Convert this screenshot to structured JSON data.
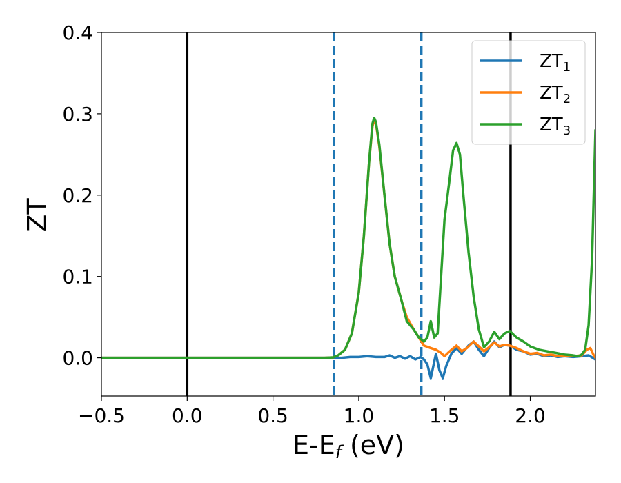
{
  "chart_data": {
    "type": "line",
    "xlabel": {
      "main": "E-E",
      "sub": "f",
      "unit": " (eV)"
    },
    "ylabel": "ZT",
    "xlim": [
      -0.5,
      2.38
    ],
    "ylim": [
      -0.047,
      0.4
    ],
    "x_ticks": [
      -0.5,
      0.0,
      0.5,
      1.0,
      1.5,
      2.0
    ],
    "x_tick_labels": [
      "−0.5",
      "0.0",
      "0.5",
      "1.0",
      "1.5",
      "2.0"
    ],
    "y_ticks": [
      0.0,
      0.1,
      0.2,
      0.3,
      0.4
    ],
    "y_tick_labels": [
      "0.0",
      "0.1",
      "0.2",
      "0.3",
      "0.4"
    ],
    "grid": false,
    "legend_position": "top-right",
    "vertical_lines": [
      {
        "x": 0.0,
        "style": "solid",
        "color": "#000000"
      },
      {
        "x": 1.885,
        "style": "solid",
        "color": "#000000"
      },
      {
        "x": 0.855,
        "style": "dashed",
        "color": "#1f77b4"
      },
      {
        "x": 1.365,
        "style": "dashed",
        "color": "#1f77b4"
      }
    ],
    "series": [
      {
        "name": "ZT",
        "name_sub": "1",
        "color": "#1f77b4",
        "points": [
          [
            -0.5,
            0
          ],
          [
            0.8,
            0
          ],
          [
            0.9,
            0
          ],
          [
            0.95,
            0.001
          ],
          [
            1.0,
            0.001
          ],
          [
            1.05,
            0.002
          ],
          [
            1.1,
            0.001
          ],
          [
            1.15,
            0.001
          ],
          [
            1.18,
            0.003
          ],
          [
            1.21,
            0
          ],
          [
            1.24,
            0.002
          ],
          [
            1.27,
            -0.001
          ],
          [
            1.3,
            0.002
          ],
          [
            1.33,
            -0.002
          ],
          [
            1.36,
            0.001
          ],
          [
            1.38,
            -0.002
          ],
          [
            1.4,
            -0.008
          ],
          [
            1.42,
            -0.025
          ],
          [
            1.44,
            -0.005
          ],
          [
            1.45,
            0.005
          ],
          [
            1.47,
            -0.015
          ],
          [
            1.49,
            -0.025
          ],
          [
            1.51,
            -0.01
          ],
          [
            1.54,
            0.005
          ],
          [
            1.57,
            0.012
          ],
          [
            1.6,
            0.005
          ],
          [
            1.64,
            0.015
          ],
          [
            1.67,
            0.02
          ],
          [
            1.7,
            0.01
          ],
          [
            1.73,
            0.002
          ],
          [
            1.76,
            0.012
          ],
          [
            1.79,
            0.02
          ],
          [
            1.82,
            0.013
          ],
          [
            1.85,
            0.016
          ],
          [
            1.88,
            0.015
          ],
          [
            1.92,
            0.01
          ],
          [
            1.96,
            0.008
          ],
          [
            2.0,
            0.004
          ],
          [
            2.04,
            0.005
          ],
          [
            2.08,
            0.002
          ],
          [
            2.12,
            0.003
          ],
          [
            2.16,
            0.001
          ],
          [
            2.2,
            0.002
          ],
          [
            2.25,
            0.001
          ],
          [
            2.3,
            0.002
          ],
          [
            2.34,
            0.003
          ],
          [
            2.38,
            -0.002
          ]
        ]
      },
      {
        "name": "ZT",
        "name_sub": "2",
        "color": "#ff7f0e",
        "points": [
          [
            -0.5,
            0
          ],
          [
            0.8,
            0
          ],
          [
            0.85,
            0.0005
          ],
          [
            0.88,
            0.003
          ],
          [
            0.92,
            0.01
          ],
          [
            0.96,
            0.03
          ],
          [
            1.0,
            0.08
          ],
          [
            1.03,
            0.15
          ],
          [
            1.06,
            0.24
          ],
          [
            1.08,
            0.285
          ],
          [
            1.09,
            0.292
          ],
          [
            1.1,
            0.288
          ],
          [
            1.12,
            0.26
          ],
          [
            1.15,
            0.2
          ],
          [
            1.18,
            0.14
          ],
          [
            1.21,
            0.1
          ],
          [
            1.25,
            0.07
          ],
          [
            1.28,
            0.05
          ],
          [
            1.32,
            0.035
          ],
          [
            1.35,
            0.025
          ],
          [
            1.38,
            0.015
          ],
          [
            1.42,
            0.012
          ],
          [
            1.45,
            0.01
          ],
          [
            1.48,
            0.006
          ],
          [
            1.5,
            0.002
          ],
          [
            1.53,
            0.008
          ],
          [
            1.57,
            0.015
          ],
          [
            1.6,
            0.008
          ],
          [
            1.63,
            0.012
          ],
          [
            1.67,
            0.02
          ],
          [
            1.7,
            0.014
          ],
          [
            1.73,
            0.008
          ],
          [
            1.76,
            0.013
          ],
          [
            1.79,
            0.019
          ],
          [
            1.82,
            0.014
          ],
          [
            1.85,
            0.016
          ],
          [
            1.88,
            0.015
          ],
          [
            1.92,
            0.012
          ],
          [
            1.96,
            0.008
          ],
          [
            2.0,
            0.005
          ],
          [
            2.04,
            0.006
          ],
          [
            2.08,
            0.003
          ],
          [
            2.12,
            0.004
          ],
          [
            2.16,
            0.002
          ],
          [
            2.2,
            0.002
          ],
          [
            2.25,
            0.002
          ],
          [
            2.3,
            0.003
          ],
          [
            2.33,
            0.01
          ],
          [
            2.35,
            0.012
          ],
          [
            2.37,
            0.003
          ],
          [
            2.38,
            0.0
          ]
        ]
      },
      {
        "name": "ZT",
        "name_sub": "3",
        "color": "#2ca02c",
        "points": [
          [
            -0.5,
            0
          ],
          [
            0.8,
            0
          ],
          [
            0.85,
            0.0005
          ],
          [
            0.88,
            0.003
          ],
          [
            0.92,
            0.01
          ],
          [
            0.96,
            0.03
          ],
          [
            1.0,
            0.08
          ],
          [
            1.03,
            0.15
          ],
          [
            1.06,
            0.24
          ],
          [
            1.08,
            0.288
          ],
          [
            1.09,
            0.295
          ],
          [
            1.1,
            0.29
          ],
          [
            1.12,
            0.262
          ],
          [
            1.15,
            0.2
          ],
          [
            1.18,
            0.14
          ],
          [
            1.21,
            0.1
          ],
          [
            1.25,
            0.07
          ],
          [
            1.28,
            0.045
          ],
          [
            1.32,
            0.035
          ],
          [
            1.35,
            0.025
          ],
          [
            1.38,
            0.02
          ],
          [
            1.4,
            0.025
          ],
          [
            1.42,
            0.045
          ],
          [
            1.44,
            0.025
          ],
          [
            1.46,
            0.03
          ],
          [
            1.48,
            0.1
          ],
          [
            1.5,
            0.17
          ],
          [
            1.53,
            0.22
          ],
          [
            1.55,
            0.255
          ],
          [
            1.57,
            0.264
          ],
          [
            1.59,
            0.25
          ],
          [
            1.61,
            0.2
          ],
          [
            1.64,
            0.13
          ],
          [
            1.67,
            0.075
          ],
          [
            1.7,
            0.035
          ],
          [
            1.73,
            0.013
          ],
          [
            1.76,
            0.02
          ],
          [
            1.79,
            0.032
          ],
          [
            1.82,
            0.023
          ],
          [
            1.85,
            0.03
          ],
          [
            1.88,
            0.033
          ],
          [
            1.92,
            0.025
          ],
          [
            1.96,
            0.02
          ],
          [
            2.0,
            0.014
          ],
          [
            2.05,
            0.01
          ],
          [
            2.1,
            0.008
          ],
          [
            2.15,
            0.006
          ],
          [
            2.2,
            0.004
          ],
          [
            2.25,
            0.003
          ],
          [
            2.28,
            0.002
          ],
          [
            2.3,
            0.004
          ],
          [
            2.32,
            0.01
          ],
          [
            2.34,
            0.04
          ],
          [
            2.36,
            0.12
          ],
          [
            2.38,
            0.28
          ]
        ]
      }
    ]
  }
}
